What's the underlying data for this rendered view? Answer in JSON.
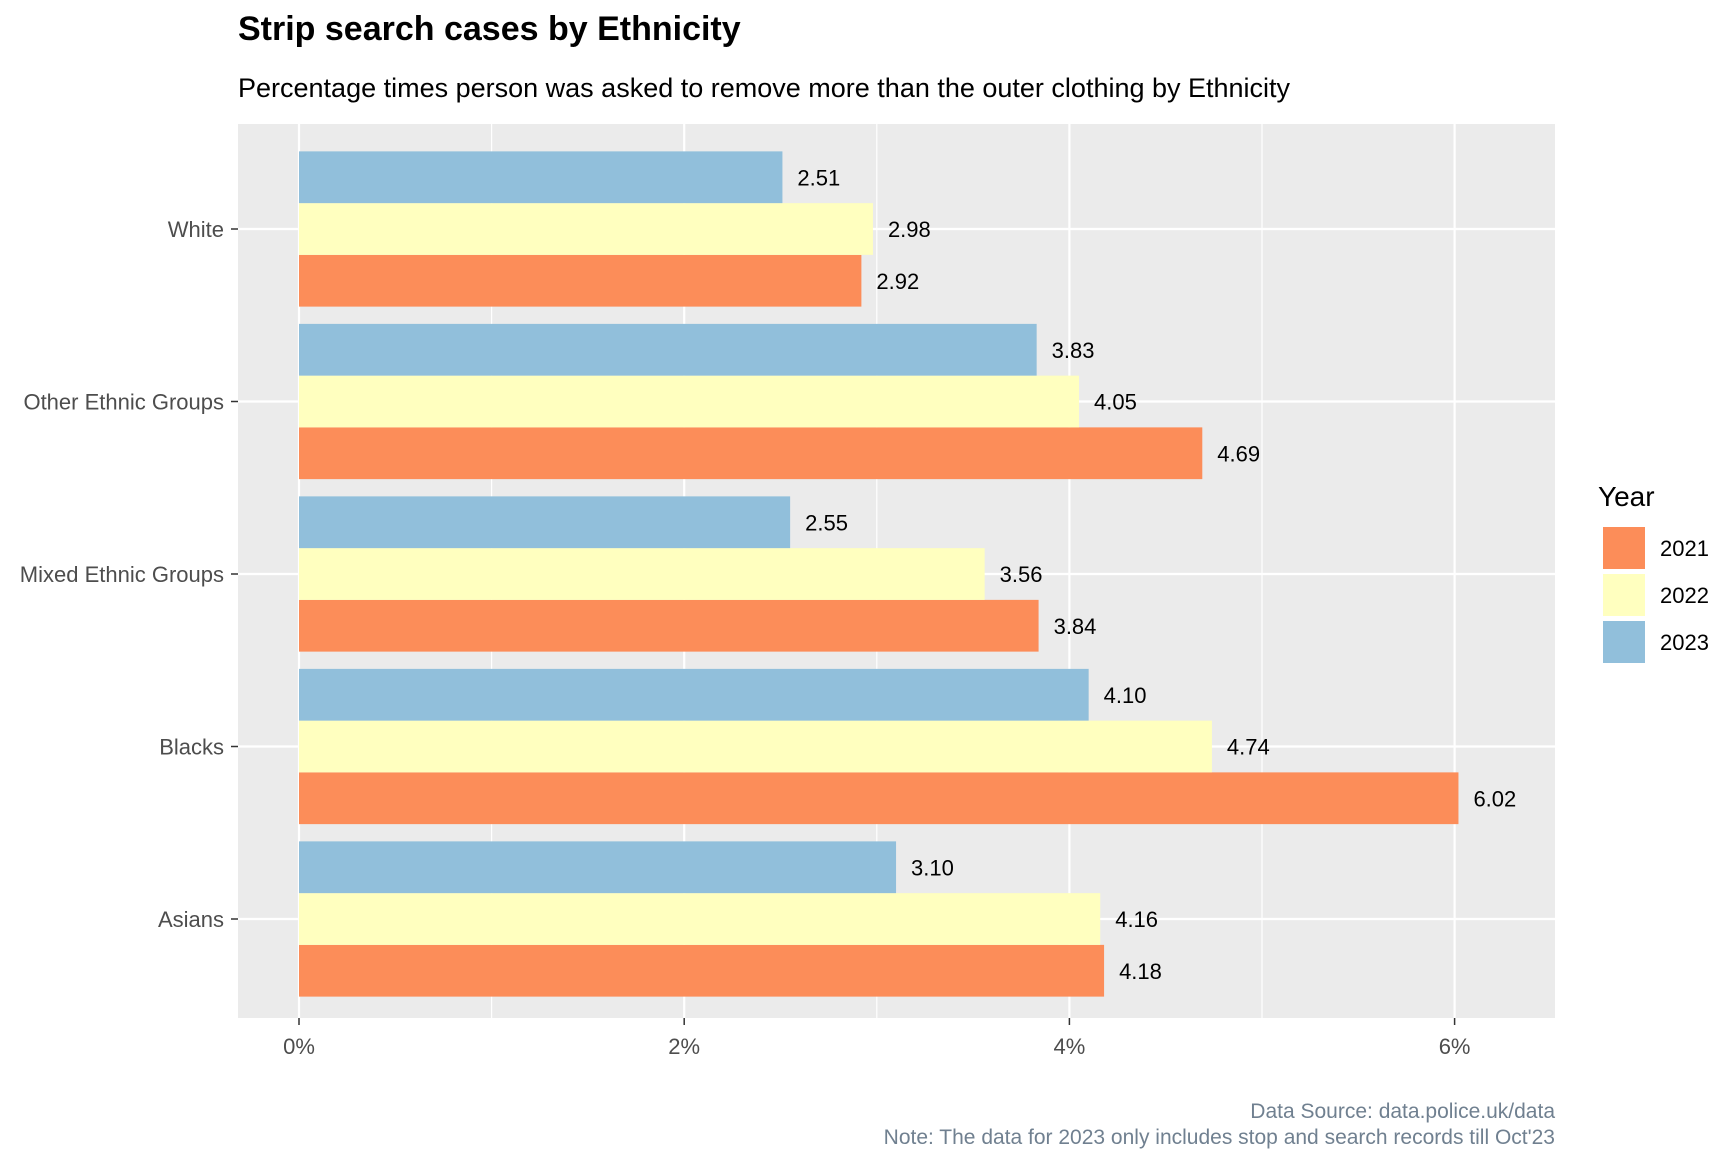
{
  "chart_data": {
    "type": "bar",
    "orientation": "horizontal",
    "title": "Strip search cases by Ethnicity",
    "subtitle": "Percentage times person was asked to remove more than the outer clothing by Ethnicity",
    "categories": [
      "Asians",
      "Blacks",
      "Mixed Ethnic Groups",
      "Other Ethnic Groups",
      "White"
    ],
    "series": [
      {
        "name": "2021",
        "color": "#FC8D59",
        "values": [
          4.18,
          6.02,
          3.84,
          4.69,
          2.92
        ],
        "labels": [
          "4.18",
          "6.02",
          "3.84",
          "4.69",
          "2.92"
        ]
      },
      {
        "name": "2022",
        "color": "#FFFFBF",
        "values": [
          4.16,
          4.74,
          3.56,
          4.05,
          2.98
        ],
        "labels": [
          "4.16",
          "4.74",
          "3.56",
          "4.05",
          "2.98"
        ]
      },
      {
        "name": "2023",
        "color": "#91BFDB",
        "values": [
          3.1,
          4.1,
          2.55,
          3.83,
          2.51
        ],
        "labels": [
          "3.10",
          "4.10",
          "2.55",
          "3.83",
          "2.51"
        ]
      }
    ],
    "xlim": [
      -0.3,
      6.3
    ],
    "x_ticks": [
      0,
      2,
      4,
      6
    ],
    "x_tick_labels": [
      "0%",
      "2%",
      "4%",
      "6%"
    ],
    "grid": true,
    "panel_background": "#EBEBEB",
    "grid_color": "#FFFFFF",
    "legend": {
      "title": "Year",
      "position": "right",
      "entries": [
        "2021",
        "2022",
        "2023"
      ]
    },
    "caption": [
      "Data Source: data.police.uk/data",
      "Note: The data for 2023 only includes stop and search records till Oct'23"
    ]
  }
}
